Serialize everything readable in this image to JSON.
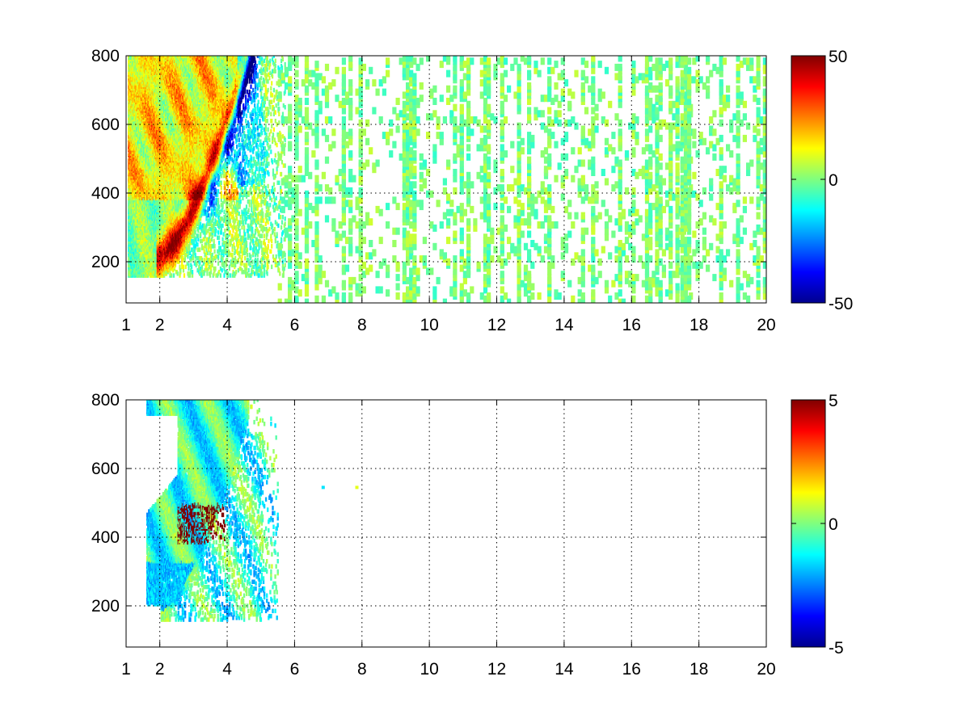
{
  "chart_data": [
    {
      "type": "heatmap",
      "title": "",
      "xlabel": "",
      "ylabel": "",
      "xlim": [
        1,
        20
      ],
      "ylim": [
        80,
        800
      ],
      "x_ticks": [
        1,
        2,
        4,
        6,
        8,
        10,
        12,
        14,
        16,
        18,
        20
      ],
      "y_ticks": [
        200,
        400,
        600,
        800
      ],
      "grid": true,
      "colormap": "jet",
      "colorbar": {
        "min": -50,
        "max": 50,
        "ticks": [
          -50,
          0,
          50
        ]
      },
      "features": [
        {
          "description_value": "positive band",
          "x_range": [
            1.9,
            4.0
          ],
          "y_center_at_x_start": 225,
          "value": 45
        },
        {
          "description_value": "negative band",
          "x_range": [
            3.0,
            5.6
          ],
          "value": -45
        },
        {
          "description_value": "sparse near-zero speckle",
          "x_range": [
            5.5,
            20
          ],
          "value_range": [
            -8,
            8
          ]
        },
        {
          "description_value": "dense column",
          "x": 17.6,
          "value_range": [
            -5,
            5
          ]
        }
      ]
    },
    {
      "type": "heatmap",
      "title": "",
      "xlabel": "",
      "ylabel": "",
      "xlim": [
        1,
        20
      ],
      "ylim": [
        80,
        800
      ],
      "x_ticks": [
        1,
        2,
        4,
        6,
        8,
        10,
        12,
        14,
        16,
        18,
        20
      ],
      "y_ticks": [
        200,
        400,
        600,
        800
      ],
      "grid": true,
      "colormap": "jet",
      "colorbar": {
        "min": -5,
        "max": 5,
        "ticks": [
          -5,
          0,
          5
        ]
      },
      "features": [
        {
          "description_value": "broad near-zero region",
          "x_range": [
            1.6,
            5.4
          ],
          "y_range": [
            160,
            800
          ],
          "value_range": [
            -2,
            1
          ]
        },
        {
          "description_value": "high-value cluster",
          "x_range": [
            2.5,
            3.9
          ],
          "y_range": [
            380,
            500
          ],
          "value": 5
        },
        {
          "description_value": "isolated points",
          "points": [
            [
              6.8,
              545,
              -1.5
            ],
            [
              7.8,
              545,
              1.0
            ]
          ]
        }
      ]
    }
  ]
}
